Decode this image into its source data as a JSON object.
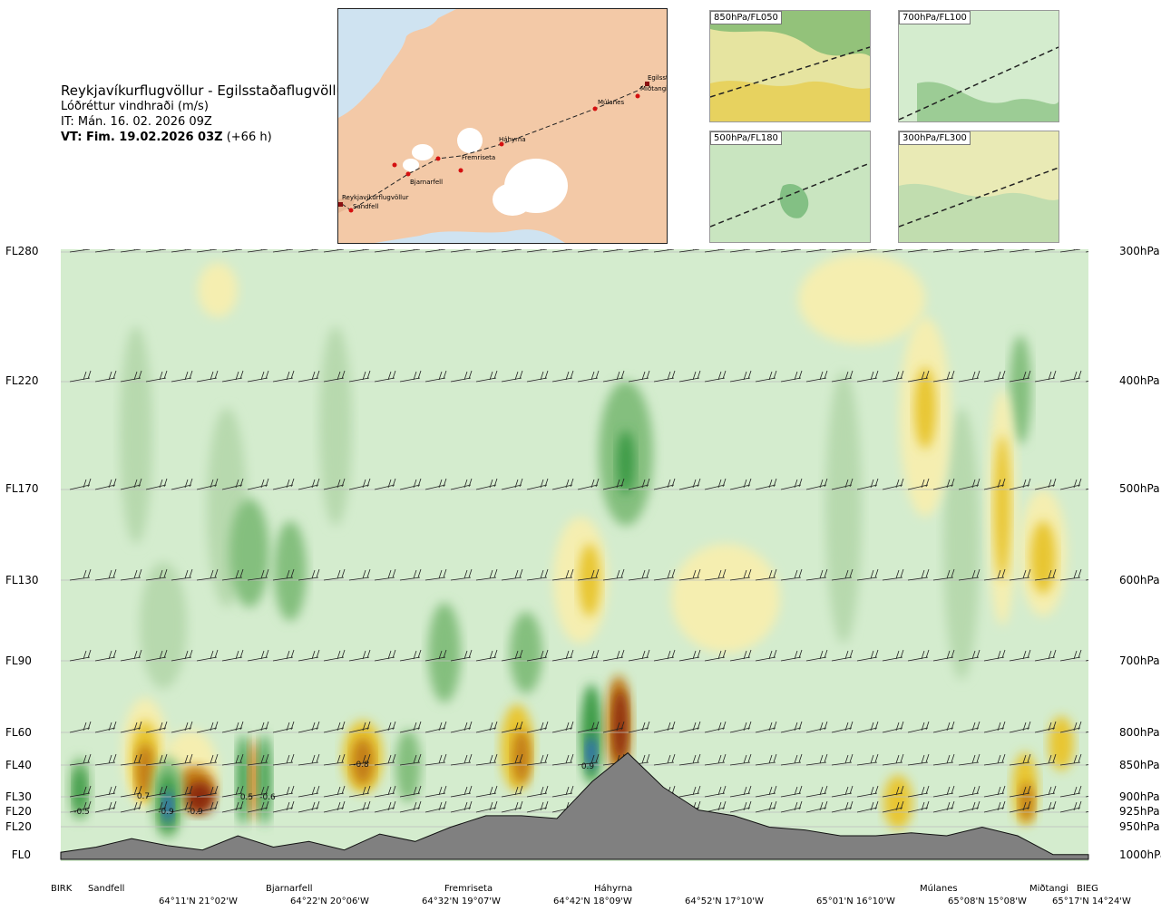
{
  "header": {
    "route": "Reykjavíkurflugvöllur - Egilsstaðaflugvöllur",
    "quantity": "Lóðréttur vindhraði (m/s)",
    "it": "IT: Mán. 16. 02. 2026 09Z",
    "vt_bold": "VT: Fim. 19.02.2026 03Z",
    "vt_rest": " (+66 h)"
  },
  "map": {
    "places": [
      "Reykjavíkurflugvöllur",
      "Sandfell",
      "Bjarnarfell",
      "Fremriseta",
      "Háhyrna",
      "Múlanes",
      "Egilsstaðir",
      "Miðtangi"
    ],
    "places_short": [
      "Reykjavíkurflugvöllur",
      "Sandfell",
      "Bjarnarfell",
      "Fremriseta",
      "Háhyrna",
      "Múlanes",
      "Egilssta",
      "Miðtangi"
    ]
  },
  "mini_maps": [
    {
      "label": "850hPa/FL050"
    },
    {
      "label": "700hPa/FL100"
    },
    {
      "label": "500hPa/FL180"
    },
    {
      "label": "300hPa/FL300"
    }
  ],
  "colors": {
    "neutral": "#d4ecce",
    "up_weak": "#f5eeb0",
    "up_mid": "#e8c633",
    "up_strong": "#c27d18",
    "up_max": "#8c2a0e",
    "down_weak": "#b7d9ae",
    "down_mid": "#84bf7e",
    "down_strong": "#3e9b47",
    "down_max": "#2d6cc0",
    "terrain": "#808080",
    "map_land": "#f3c9a7",
    "map_sea": "#cfe3f1",
    "route": "#d41010"
  },
  "chart_data": {
    "type": "heatmap",
    "title": "Lóðréttur vindhraði (m/s)",
    "left_axis_ticks": [
      "FL280",
      "FL220",
      "FL170",
      "FL130",
      "FL90",
      "FL60",
      "FL40",
      "FL30",
      "FL20",
      "FL20",
      "FL0"
    ],
    "right_axis_ticks": [
      "300hPa",
      "400hPa",
      "500hPa",
      "600hPa",
      "700hPa",
      "800hPa",
      "850hPa",
      "900hPa",
      "925hPa",
      "950hPa",
      "1000hPa"
    ],
    "waypoints": [
      "BIRK",
      "Sandfell",
      "Bjarnarfell",
      "Fremriseta",
      "Háhyrna",
      "Múlanes",
      "Miðtangi",
      "BIEG"
    ],
    "coordinates": [
      "64°11'N 21°02'W",
      "64°22'N 20°06'W",
      "64°32'N 19°07'W",
      "64°42'N 18°09'W",
      "64°52'N 17°10'W",
      "65°01'N 16°10'W",
      "65°08'N 15°08'W",
      "65°17'N 14°24'W"
    ],
    "annotations": [
      "-0.5",
      "0.7",
      "-0.9",
      "-0.9",
      "0.5",
      "-0.6",
      "-0.8",
      "0.9"
    ],
    "terrain_profile_m": [
      60,
      150,
      300,
      180,
      100,
      350,
      150,
      250,
      100,
      380,
      250,
      500,
      700,
      700,
      650,
      1300,
      1800,
      1200,
      800,
      700,
      500,
      450,
      350,
      350,
      400,
      350,
      500,
      350,
      20,
      20
    ],
    "wind_vertical_ms_summary": [
      {
        "location": "Sandfell",
        "level": "FL40",
        "value": -0.5
      },
      {
        "location": "between Sandfell and Bjarnarfell",
        "level": "FL30",
        "value": 0.7
      },
      {
        "location": "between Sandfell and Bjarnarfell",
        "level": "FL20",
        "value": -0.9
      },
      {
        "location": "Bjarnarfell",
        "level": "FL30",
        "value": -0.9
      },
      {
        "location": "Háhyrna",
        "level": "FL40",
        "value": 0.9
      }
    ]
  }
}
